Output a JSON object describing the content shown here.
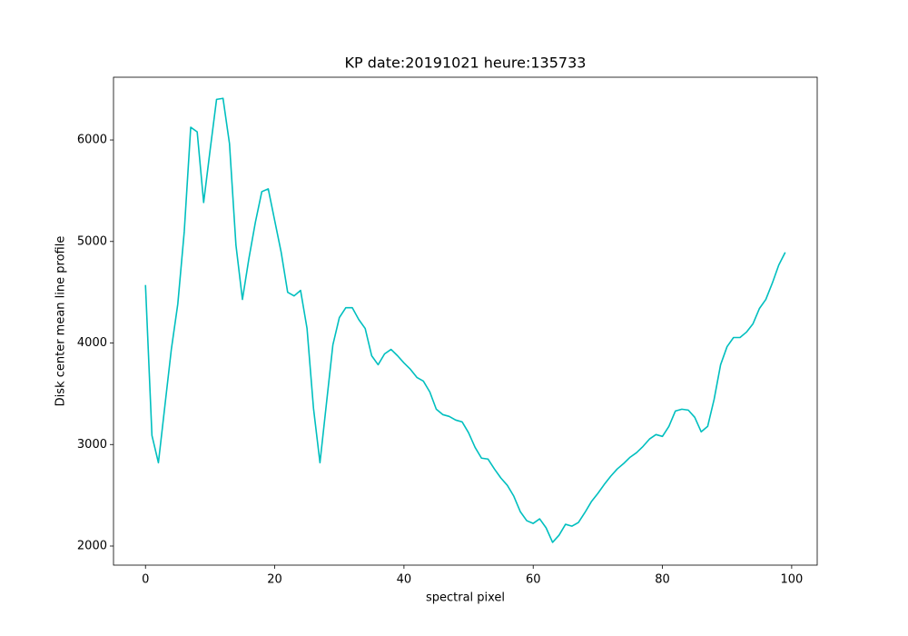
{
  "chart_data": {
    "type": "line",
    "title": "KP date:20191021 heure:135733",
    "x_label": "spectral pixel",
    "y_label": "Disk center mean line profile",
    "color": "#00bfbf",
    "x": [
      0,
      1,
      2,
      3,
      4,
      5,
      6,
      7,
      8,
      9,
      10,
      11,
      12,
      13,
      14,
      15,
      16,
      17,
      18,
      19,
      20,
      21,
      22,
      23,
      24,
      25,
      26,
      27,
      28,
      29,
      30,
      31,
      32,
      33,
      34,
      35,
      36,
      37,
      38,
      39,
      40,
      41,
      42,
      43,
      44,
      45,
      46,
      47,
      48,
      49,
      50,
      51,
      52,
      53,
      54,
      55,
      56,
      57,
      58,
      59,
      60,
      61,
      62,
      63,
      64,
      65,
      66,
      67,
      68,
      69,
      70,
      71,
      72,
      73,
      74,
      75,
      76,
      77,
      78,
      79,
      80,
      81,
      82,
      83,
      84,
      85,
      86,
      87,
      88,
      89,
      90,
      91,
      92,
      93,
      94,
      95,
      96,
      97,
      98,
      99
    ],
    "values": [
      4571,
      3089,
      2821,
      3380,
      3937,
      4384,
      5098,
      6125,
      6080,
      5384,
      5900,
      6400,
      6410,
      5964,
      4964,
      4429,
      4830,
      5187,
      5491,
      5518,
      5205,
      4893,
      4500,
      4464,
      4518,
      4143,
      3357,
      2821,
      3402,
      3982,
      4250,
      4348,
      4348,
      4232,
      4143,
      3875,
      3786,
      3893,
      3937,
      3875,
      3804,
      3741,
      3661,
      3625,
      3518,
      3348,
      3295,
      3277,
      3241,
      3223,
      3116,
      2973,
      2866,
      2857,
      2759,
      2670,
      2598,
      2491,
      2339,
      2250,
      2223,
      2268,
      2179,
      2036,
      2107,
      2214,
      2196,
      2232,
      2330,
      2437,
      2518,
      2607,
      2688,
      2759,
      2813,
      2875,
      2920,
      2982,
      3054,
      3098,
      3080,
      3179,
      3330,
      3348,
      3339,
      3268,
      3125,
      3179,
      3446,
      3786,
      3964,
      4054,
      4054,
      4107,
      4188,
      4339,
      4429,
      4589,
      4768,
      4893
    ],
    "xlim": [
      -4.95,
      103.95
    ],
    "ylim": [
      1812,
      6618
    ],
    "xticks": [
      0,
      20,
      40,
      60,
      80,
      100
    ],
    "yticks": [
      2000,
      3000,
      4000,
      5000,
      6000
    ],
    "grid": false
  }
}
